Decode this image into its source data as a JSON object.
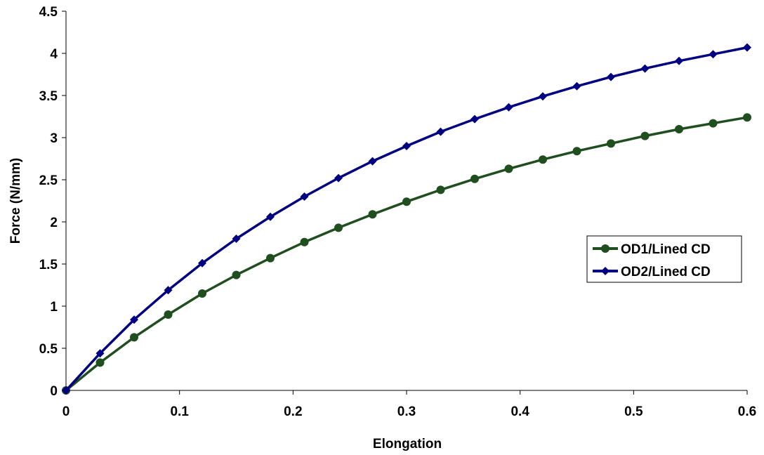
{
  "chart_data": {
    "type": "line",
    "xlabel": "Elongation",
    "ylabel": "Force (N/mm)",
    "xlim": [
      0,
      0.6
    ],
    "ylim": [
      0,
      4.5
    ],
    "xticks": [
      0,
      0.1,
      0.2,
      0.3,
      0.4,
      0.5,
      0.6
    ],
    "xtick_labels": [
      "0",
      "0.1",
      "0.2",
      "0.3",
      "0.4",
      "0.5",
      "0.6"
    ],
    "yticks": [
      0,
      0.5,
      1,
      1.5,
      2,
      2.5,
      3,
      3.5,
      4,
      4.5
    ],
    "ytick_labels": [
      "0",
      "0.5",
      "1",
      "1.5",
      "2",
      "2.5",
      "3",
      "3.5",
      "4",
      "4.5"
    ],
    "grid": false,
    "legend_position": "right",
    "x": [
      0,
      0.03,
      0.06,
      0.09,
      0.12,
      0.15,
      0.18,
      0.21,
      0.24,
      0.27,
      0.3,
      0.33,
      0.36,
      0.39,
      0.42,
      0.45,
      0.48,
      0.51,
      0.54,
      0.57,
      0.6
    ],
    "series": [
      {
        "name": "OD1/Lined CD",
        "color": "#1f4e1f",
        "marker": "circle",
        "values": [
          0,
          0.33,
          0.63,
          0.9,
          1.15,
          1.37,
          1.57,
          1.76,
          1.93,
          2.09,
          2.24,
          2.38,
          2.51,
          2.63,
          2.74,
          2.84,
          2.93,
          3.02,
          3.1,
          3.17,
          3.24
        ]
      },
      {
        "name": "OD2/Lined CD",
        "color": "#000080",
        "marker": "diamond",
        "values": [
          0,
          0.44,
          0.84,
          1.19,
          1.51,
          1.8,
          2.06,
          2.3,
          2.52,
          2.72,
          2.9,
          3.07,
          3.22,
          3.36,
          3.49,
          3.61,
          3.72,
          3.82,
          3.91,
          3.99,
          4.07
        ]
      }
    ]
  }
}
